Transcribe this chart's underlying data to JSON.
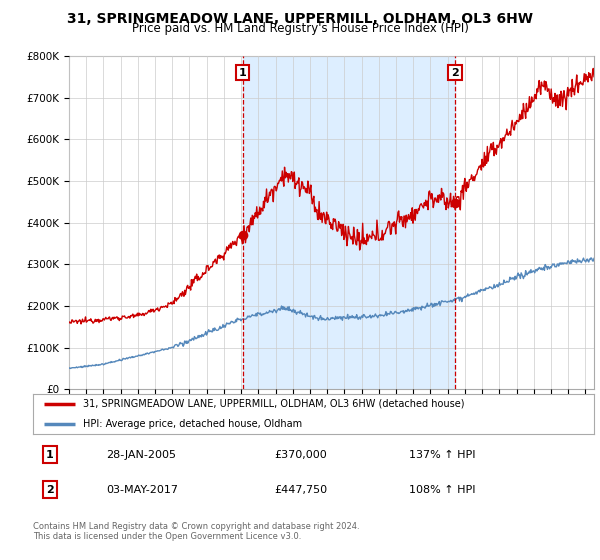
{
  "title": "31, SPRINGMEADOW LANE, UPPERMILL, OLDHAM, OL3 6HW",
  "subtitle": "Price paid vs. HM Land Registry's House Price Index (HPI)",
  "red_label": "31, SPRINGMEADOW LANE, UPPERMILL, OLDHAM, OL3 6HW (detached house)",
  "blue_label": "HPI: Average price, detached house, Oldham",
  "sale1_date": "28-JAN-2005",
  "sale1_price": 370000,
  "sale1_pct": "137%",
  "sale2_date": "03-MAY-2017",
  "sale2_price": 447750,
  "sale2_pct": "108%",
  "footer": "Contains HM Land Registry data © Crown copyright and database right 2024.\nThis data is licensed under the Open Government Licence v3.0.",
  "ylim": [
    0,
    800000
  ],
  "xlim_start": 1995.0,
  "xlim_end": 2025.5,
  "sale1_x": 2005.08,
  "sale2_x": 2017.42,
  "red_color": "#cc0000",
  "blue_color": "#5588bb",
  "shade_color": "#ddeeff",
  "marker_box_color": "#cc0000",
  "background_color": "#ffffff",
  "grid_color": "#cccccc"
}
